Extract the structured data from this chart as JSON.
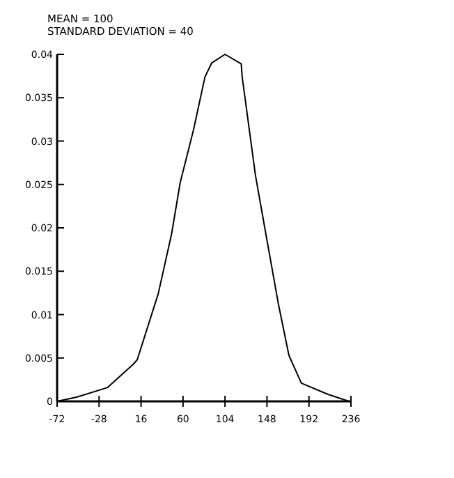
{
  "chart_data": {
    "type": "line",
    "annotations": [
      "MEAN = 100",
      "STANDARD DEVIATION = 40"
    ],
    "x": [
      -72,
      -51,
      -19,
      8,
      12,
      34,
      48,
      57,
      71,
      83,
      90,
      104,
      121,
      122,
      136,
      146,
      160,
      171,
      184,
      212,
      234
    ],
    "series": [
      {
        "color": "#000000",
        "values": [
          0,
          0.0005,
          0.0016,
          0.0043,
          0.0048,
          0.0124,
          0.0193,
          0.0252,
          0.0313,
          0.0374,
          0.039,
          0.04,
          0.0389,
          0.0374,
          0.026,
          0.0198,
          0.0112,
          0.0053,
          0.0021,
          0.0008,
          0
        ]
      }
    ],
    "xlim": [
      -72,
      236
    ],
    "xticks": [
      -72,
      -28,
      16,
      60,
      104,
      148,
      192,
      236
    ],
    "ylim": [
      0,
      0.04
    ],
    "yticks": [
      0,
      0.005,
      0.01,
      0.015,
      0.02,
      0.025,
      0.03,
      0.035,
      0.04
    ],
    "grid": false,
    "marker": "none",
    "line_style": "solid"
  }
}
